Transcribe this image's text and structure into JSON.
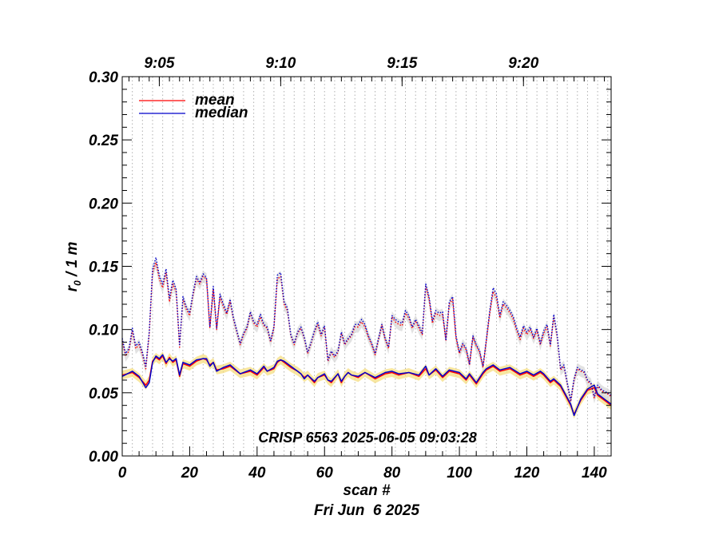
{
  "chart_data": {
    "type": "line",
    "xlabel": "scan #",
    "date_label": "Fri Jun  6 2025",
    "annotation": "CRISP 6563 2025-06-05 09:03:28",
    "xlim": [
      0,
      145
    ],
    "ylim": [
      0,
      0.3
    ],
    "x_ticks": [
      "0",
      "20",
      "40",
      "60",
      "80",
      "100",
      "120",
      "140"
    ],
    "y_ticks": [
      "0.00",
      "0.05",
      "0.10",
      "0.15",
      "0.20",
      "0.25",
      "0.30"
    ],
    "top_axis_ticks": [
      {
        "label": "9:05",
        "scan": 11
      },
      {
        "label": "9:10",
        "scan": 47
      },
      {
        "label": "9:15",
        "scan": 83
      },
      {
        "label": "9:20",
        "scan": 119
      }
    ],
    "ylabel": {
      "main": "r",
      "sub": "0",
      "rest": " / 1 m"
    },
    "grid_x": "dotted vertical every 3 scans",
    "legend_position": "top-left",
    "colors": {
      "mean": "#ff0000",
      "median": "#0000cc",
      "band_lower": "#f5dd80",
      "band_upper": "#d8d8d8"
    },
    "series": [
      {
        "name": "mean",
        "group": "lower",
        "color": "#ff0000",
        "style": "solid",
        "x": [
          0,
          3,
          5,
          7,
          8,
          9,
          10,
          11,
          12,
          13,
          14,
          15,
          16,
          17,
          18,
          20,
          22,
          24,
          25,
          26,
          27,
          28,
          30,
          32,
          35,
          38,
          40,
          42,
          43,
          45,
          46,
          47,
          48,
          50,
          52,
          53,
          54,
          55,
          57,
          58,
          60,
          61,
          62,
          64,
          65,
          66,
          67,
          68,
          70,
          72,
          75,
          78,
          80,
          82,
          85,
          88,
          90,
          91,
          93,
          95,
          97,
          100,
          102,
          103,
          105,
          107,
          108,
          110,
          112,
          115,
          118,
          120,
          122,
          124,
          125,
          127,
          128,
          130,
          133,
          134,
          136,
          138,
          140,
          141,
          143,
          145
        ],
        "values": [
          0.064,
          0.066,
          0.062,
          0.056,
          0.06,
          0.075,
          0.078,
          0.076,
          0.079,
          0.073,
          0.078,
          0.074,
          0.076,
          0.063,
          0.073,
          0.071,
          0.075,
          0.077,
          0.076,
          0.072,
          0.074,
          0.068,
          0.069,
          0.071,
          0.065,
          0.067,
          0.064,
          0.07,
          0.067,
          0.069,
          0.074,
          0.076,
          0.074,
          0.07,
          0.067,
          0.065,
          0.062,
          0.064,
          0.058,
          0.062,
          0.064,
          0.06,
          0.058,
          0.065,
          0.058,
          0.063,
          0.066,
          0.064,
          0.062,
          0.066,
          0.061,
          0.065,
          0.066,
          0.064,
          0.066,
          0.063,
          0.069,
          0.064,
          0.068,
          0.062,
          0.067,
          0.065,
          0.06,
          0.064,
          0.057,
          0.065,
          0.068,
          0.071,
          0.067,
          0.069,
          0.064,
          0.066,
          0.063,
          0.066,
          0.064,
          0.058,
          0.06,
          0.055,
          0.04,
          0.033,
          0.044,
          0.052,
          0.054,
          0.048,
          0.044,
          0.04
        ]
      },
      {
        "name": "median",
        "group": "lower",
        "color": "#0000cc",
        "style": "solid",
        "x": [
          0,
          3,
          5,
          7,
          8,
          9,
          10,
          11,
          12,
          13,
          14,
          15,
          16,
          17,
          18,
          20,
          22,
          24,
          25,
          26,
          27,
          28,
          30,
          32,
          35,
          38,
          40,
          42,
          43,
          45,
          46,
          47,
          48,
          50,
          52,
          53,
          54,
          55,
          57,
          58,
          60,
          61,
          62,
          64,
          65,
          66,
          67,
          68,
          70,
          72,
          75,
          78,
          80,
          82,
          85,
          88,
          90,
          91,
          93,
          95,
          97,
          100,
          102,
          103,
          105,
          107,
          108,
          110,
          112,
          115,
          118,
          120,
          122,
          124,
          125,
          127,
          128,
          130,
          133,
          134,
          136,
          138,
          140,
          141,
          143,
          145
        ],
        "values": [
          0.063,
          0.067,
          0.063,
          0.054,
          0.058,
          0.074,
          0.079,
          0.077,
          0.08,
          0.074,
          0.077,
          0.075,
          0.077,
          0.064,
          0.074,
          0.072,
          0.076,
          0.077,
          0.077,
          0.071,
          0.074,
          0.067,
          0.07,
          0.072,
          0.065,
          0.068,
          0.065,
          0.071,
          0.067,
          0.07,
          0.075,
          0.076,
          0.075,
          0.071,
          0.067,
          0.065,
          0.061,
          0.064,
          0.059,
          0.062,
          0.065,
          0.06,
          0.059,
          0.065,
          0.059,
          0.063,
          0.066,
          0.064,
          0.063,
          0.066,
          0.062,
          0.066,
          0.067,
          0.065,
          0.066,
          0.064,
          0.071,
          0.064,
          0.069,
          0.063,
          0.068,
          0.066,
          0.061,
          0.065,
          0.058,
          0.066,
          0.069,
          0.072,
          0.068,
          0.07,
          0.065,
          0.067,
          0.064,
          0.067,
          0.065,
          0.059,
          0.061,
          0.056,
          0.041,
          0.032,
          0.045,
          0.053,
          0.056,
          0.049,
          0.045,
          0.041
        ]
      },
      {
        "name": "mean",
        "group": "upper",
        "color": "#ff0000",
        "style": "dotted",
        "x": [
          0,
          1,
          2,
          3,
          4,
          5,
          6,
          7,
          8,
          9,
          10,
          11,
          12,
          13,
          14,
          15,
          16,
          17,
          18,
          19,
          20,
          21,
          22,
          23,
          24,
          25,
          26,
          27,
          28,
          29,
          30,
          31,
          32,
          33,
          34,
          35,
          36,
          37,
          38,
          39,
          40,
          41,
          42,
          43,
          44,
          45,
          46,
          47,
          48,
          49,
          50,
          51,
          52,
          53,
          54,
          55,
          56,
          57,
          58,
          59,
          60,
          61,
          62,
          63,
          64,
          65,
          66,
          67,
          68,
          69,
          70,
          71,
          72,
          73,
          74,
          75,
          76,
          77,
          78,
          79,
          80,
          81,
          82,
          83,
          84,
          85,
          86,
          87,
          88,
          89,
          90,
          91,
          92,
          93,
          94,
          95,
          96,
          97,
          98,
          99,
          100,
          101,
          102,
          103,
          104,
          105,
          106,
          107,
          108,
          109,
          110,
          111,
          112,
          113,
          114,
          115,
          116,
          117,
          118,
          119,
          120,
          121,
          122,
          123,
          124,
          125,
          126,
          127,
          128,
          129,
          130,
          131,
          132,
          133,
          134,
          135,
          136,
          137,
          138,
          139,
          140,
          141,
          142,
          143,
          144,
          145
        ],
        "values": [
          0.091,
          0.079,
          0.083,
          0.099,
          0.085,
          0.088,
          0.08,
          0.069,
          0.096,
          0.145,
          0.153,
          0.14,
          0.133,
          0.145,
          0.122,
          0.136,
          0.13,
          0.086,
          0.124,
          0.116,
          0.111,
          0.127,
          0.14,
          0.136,
          0.142,
          0.14,
          0.101,
          0.132,
          0.1,
          0.126,
          0.118,
          0.112,
          0.122,
          0.108,
          0.098,
          0.088,
          0.096,
          0.101,
          0.113,
          0.105,
          0.102,
          0.11,
          0.103,
          0.101,
          0.09,
          0.101,
          0.14,
          0.142,
          0.12,
          0.115,
          0.095,
          0.088,
          0.097,
          0.101,
          0.093,
          0.081,
          0.089,
          0.098,
          0.104,
          0.095,
          0.102,
          0.075,
          0.082,
          0.078,
          0.082,
          0.097,
          0.088,
          0.092,
          0.095,
          0.102,
          0.102,
          0.106,
          0.102,
          0.094,
          0.088,
          0.08,
          0.092,
          0.103,
          0.092,
          0.085,
          0.11,
          0.106,
          0.104,
          0.103,
          0.113,
          0.109,
          0.101,
          0.107,
          0.101,
          0.096,
          0.134,
          0.124,
          0.105,
          0.113,
          0.111,
          0.112,
          0.091,
          0.12,
          0.124,
          0.093,
          0.081,
          0.088,
          0.084,
          0.072,
          0.094,
          0.087,
          0.082,
          0.07,
          0.091,
          0.113,
          0.13,
          0.125,
          0.109,
          0.12,
          0.117,
          0.113,
          0.108,
          0.099,
          0.092,
          0.101,
          0.096,
          0.1,
          0.093,
          0.099,
          0.088,
          0.097,
          0.102,
          0.087,
          0.11,
          0.094,
          0.068,
          0.071,
          0.057,
          0.043,
          0.06,
          0.069,
          0.067,
          0.066,
          0.059,
          0.057,
          0.046,
          0.055,
          0.052,
          0.05,
          0.049,
          0.047
        ]
      },
      {
        "name": "median",
        "group": "upper",
        "color": "#0000cc",
        "style": "dotted",
        "x": [
          0,
          1,
          2,
          3,
          4,
          5,
          6,
          7,
          8,
          9,
          10,
          11,
          12,
          13,
          14,
          15,
          16,
          17,
          18,
          19,
          20,
          21,
          22,
          23,
          24,
          25,
          26,
          27,
          28,
          29,
          30,
          31,
          32,
          33,
          34,
          35,
          36,
          37,
          38,
          39,
          40,
          41,
          42,
          43,
          44,
          45,
          46,
          47,
          48,
          49,
          50,
          51,
          52,
          53,
          54,
          55,
          56,
          57,
          58,
          59,
          60,
          61,
          62,
          63,
          64,
          65,
          66,
          67,
          68,
          69,
          70,
          71,
          72,
          73,
          74,
          75,
          76,
          77,
          78,
          79,
          80,
          81,
          82,
          83,
          84,
          85,
          86,
          87,
          88,
          89,
          90,
          91,
          92,
          93,
          94,
          95,
          96,
          97,
          98,
          99,
          100,
          101,
          102,
          103,
          104,
          105,
          106,
          107,
          108,
          109,
          110,
          111,
          112,
          113,
          114,
          115,
          116,
          117,
          118,
          119,
          120,
          121,
          122,
          123,
          124,
          125,
          126,
          127,
          128,
          129,
          130,
          131,
          132,
          133,
          134,
          135,
          136,
          137,
          138,
          139,
          140,
          141,
          142,
          143,
          144,
          145
        ],
        "values": [
          0.093,
          0.081,
          0.085,
          0.101,
          0.087,
          0.09,
          0.082,
          0.071,
          0.098,
          0.148,
          0.157,
          0.143,
          0.136,
          0.148,
          0.125,
          0.139,
          0.132,
          0.088,
          0.126,
          0.118,
          0.113,
          0.129,
          0.142,
          0.137,
          0.144,
          0.141,
          0.102,
          0.134,
          0.101,
          0.128,
          0.12,
          0.113,
          0.124,
          0.109,
          0.099,
          0.089,
          0.097,
          0.102,
          0.114,
          0.106,
          0.104,
          0.112,
          0.104,
          0.102,
          0.091,
          0.102,
          0.143,
          0.145,
          0.122,
          0.117,
          0.096,
          0.089,
          0.098,
          0.102,
          0.094,
          0.082,
          0.09,
          0.099,
          0.106,
          0.096,
          0.103,
          0.076,
          0.083,
          0.079,
          0.083,
          0.098,
          0.089,
          0.093,
          0.096,
          0.104,
          0.104,
          0.108,
          0.104,
          0.095,
          0.089,
          0.081,
          0.093,
          0.104,
          0.093,
          0.086,
          0.111,
          0.108,
          0.106,
          0.105,
          0.115,
          0.111,
          0.102,
          0.108,
          0.103,
          0.097,
          0.136,
          0.126,
          0.107,
          0.115,
          0.113,
          0.114,
          0.092,
          0.122,
          0.126,
          0.095,
          0.082,
          0.089,
          0.085,
          0.073,
          0.095,
          0.088,
          0.083,
          0.071,
          0.092,
          0.115,
          0.133,
          0.128,
          0.111,
          0.122,
          0.119,
          0.115,
          0.11,
          0.101,
          0.094,
          0.103,
          0.098,
          0.102,
          0.094,
          0.101,
          0.089,
          0.099,
          0.104,
          0.088,
          0.112,
          0.096,
          0.069,
          0.072,
          0.058,
          0.044,
          0.061,
          0.07,
          0.068,
          0.067,
          0.06,
          0.058,
          0.047,
          0.056,
          0.053,
          0.051,
          0.05,
          0.048
        ]
      }
    ]
  }
}
